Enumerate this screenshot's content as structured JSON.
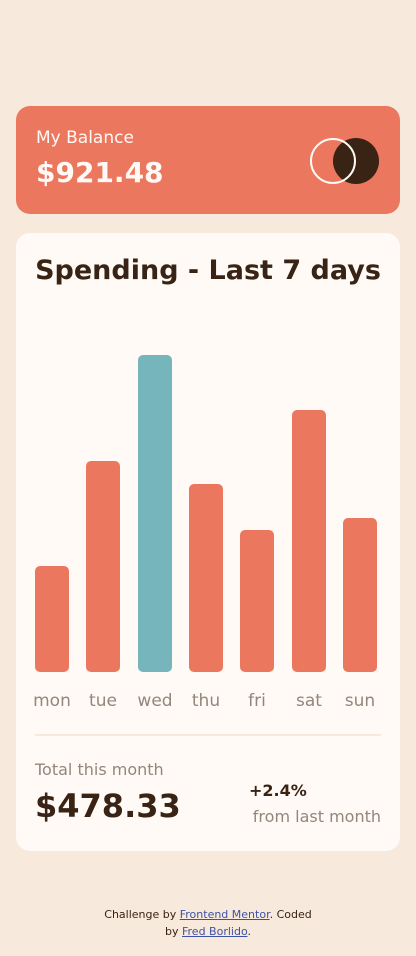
{
  "balance": {
    "label": "My Balance",
    "amount": "$921.48"
  },
  "spending": {
    "title": "Spending - Last 7 days",
    "total_label": "Total this month",
    "total_amount": "$478.33",
    "change_value": "+2.4%",
    "change_label": "from last month"
  },
  "chart_data": {
    "type": "bar",
    "categories": [
      "mon",
      "tue",
      "wed",
      "thu",
      "fri",
      "sat",
      "sun"
    ],
    "values": [
      17.45,
      34.91,
      52.36,
      31.07,
      23.39,
      43.28,
      25.48
    ],
    "highlight_index": 2,
    "colors": {
      "bar": "#ec775f",
      "highlight": "#76b5bc"
    },
    "ylim": [
      0,
      52.36
    ]
  },
  "attribution": {
    "prefix": "Challenge by",
    "link1": "Frontend Mentor",
    "middle": ". Coded",
    "by": "by",
    "link2": "Fred Borlido",
    "suffix": "."
  }
}
